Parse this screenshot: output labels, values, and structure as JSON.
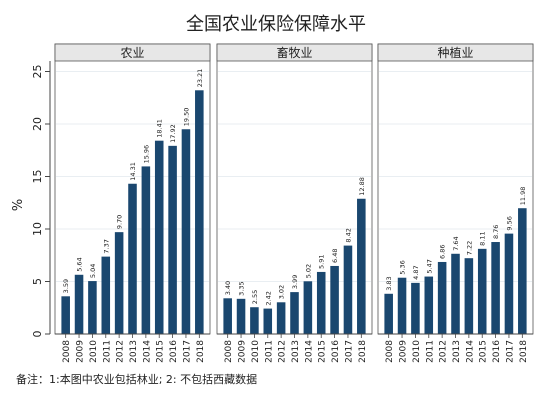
{
  "chart_data": {
    "type": "bar",
    "title": "全国农业保险保障水平",
    "ylabel": "%",
    "ylim": [
      0,
      26
    ],
    "yticks": [
      0,
      5,
      10,
      15,
      20,
      25
    ],
    "grid": true,
    "categories": [
      "2008",
      "2009",
      "2010",
      "2011",
      "2012",
      "2013",
      "2014",
      "2015",
      "2016",
      "2017",
      "2018"
    ],
    "series": [
      {
        "name": "农业",
        "values": [
          3.59,
          5.64,
          5.04,
          7.37,
          9.7,
          14.31,
          15.96,
          18.41,
          17.92,
          19.5,
          23.21
        ]
      },
      {
        "name": "畜牧业",
        "values": [
          3.4,
          3.35,
          2.55,
          2.42,
          3.02,
          3.99,
          5.02,
          5.91,
          6.48,
          8.42,
          12.88
        ]
      },
      {
        "name": "种植业",
        "values": [
          3.83,
          5.36,
          4.87,
          5.47,
          6.86,
          7.64,
          7.22,
          8.11,
          8.76,
          9.56,
          11.98
        ]
      }
    ],
    "value_labels": [
      [
        "3.59",
        "5.64",
        "5.04",
        "7.37",
        "9.70",
        "14.31",
        "15.96",
        "18.41",
        "17.92",
        "19.50",
        "23.21"
      ],
      [
        "3.40",
        "3.35",
        "2.55",
        "2.42",
        "3.02",
        "3.99",
        "5.02",
        "5.91",
        "6.48",
        "8.42",
        "12.88"
      ],
      [
        "3.83",
        "5.36",
        "4.87",
        "5.47",
        "6.86",
        "7.64",
        "7.22",
        "8.11",
        "8.76",
        "9.56",
        "11.98"
      ]
    ],
    "footnote": "备注：1:本图中农业包括林业; 2: 不包括西藏数据"
  },
  "colors": {
    "bar": "#1a476f",
    "panel_header": "#e7e7e7",
    "grid": "#e9eef2",
    "text": "#222222"
  }
}
